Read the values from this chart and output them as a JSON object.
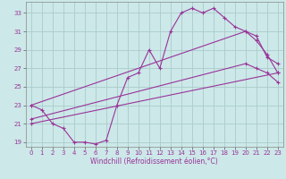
{
  "background_color": "#cce8e8",
  "grid_color": "#aacccc",
  "line_color": "#993399",
  "xlabel": "Windchill (Refroidissement éolien,°C)",
  "xlim": [
    -0.5,
    23.5
  ],
  "ylim": [
    18.5,
    34.2
  ],
  "xticks": [
    0,
    1,
    2,
    3,
    4,
    5,
    6,
    7,
    8,
    9,
    10,
    11,
    12,
    13,
    14,
    15,
    16,
    17,
    18,
    19,
    20,
    21,
    22,
    23
  ],
  "yticks": [
    19,
    21,
    23,
    25,
    27,
    29,
    31,
    33
  ],
  "line1_x": [
    0,
    1,
    2,
    3,
    4,
    5,
    6,
    7,
    8,
    9,
    10,
    11,
    12,
    13,
    14,
    15,
    16,
    17,
    18,
    19,
    20,
    21,
    22,
    23
  ],
  "line1_y": [
    23.0,
    22.5,
    21.0,
    20.5,
    19.0,
    19.0,
    18.8,
    19.2,
    23.0,
    26.0,
    26.5,
    29.0,
    27.0,
    31.0,
    33.0,
    33.5,
    33.0,
    33.5,
    32.5,
    31.5,
    31.0,
    30.5,
    28.2,
    27.5
  ],
  "line2_x": [
    0,
    23
  ],
  "line2_y": [
    21.0,
    26.5
  ],
  "line3_x": [
    0,
    20,
    21,
    22,
    23
  ],
  "line3_y": [
    23.0,
    31.0,
    30.0,
    28.5,
    26.5
  ],
  "line4_x": [
    0,
    20,
    21,
    22,
    23
  ],
  "line4_y": [
    21.5,
    27.5,
    27.0,
    26.5,
    25.5
  ]
}
